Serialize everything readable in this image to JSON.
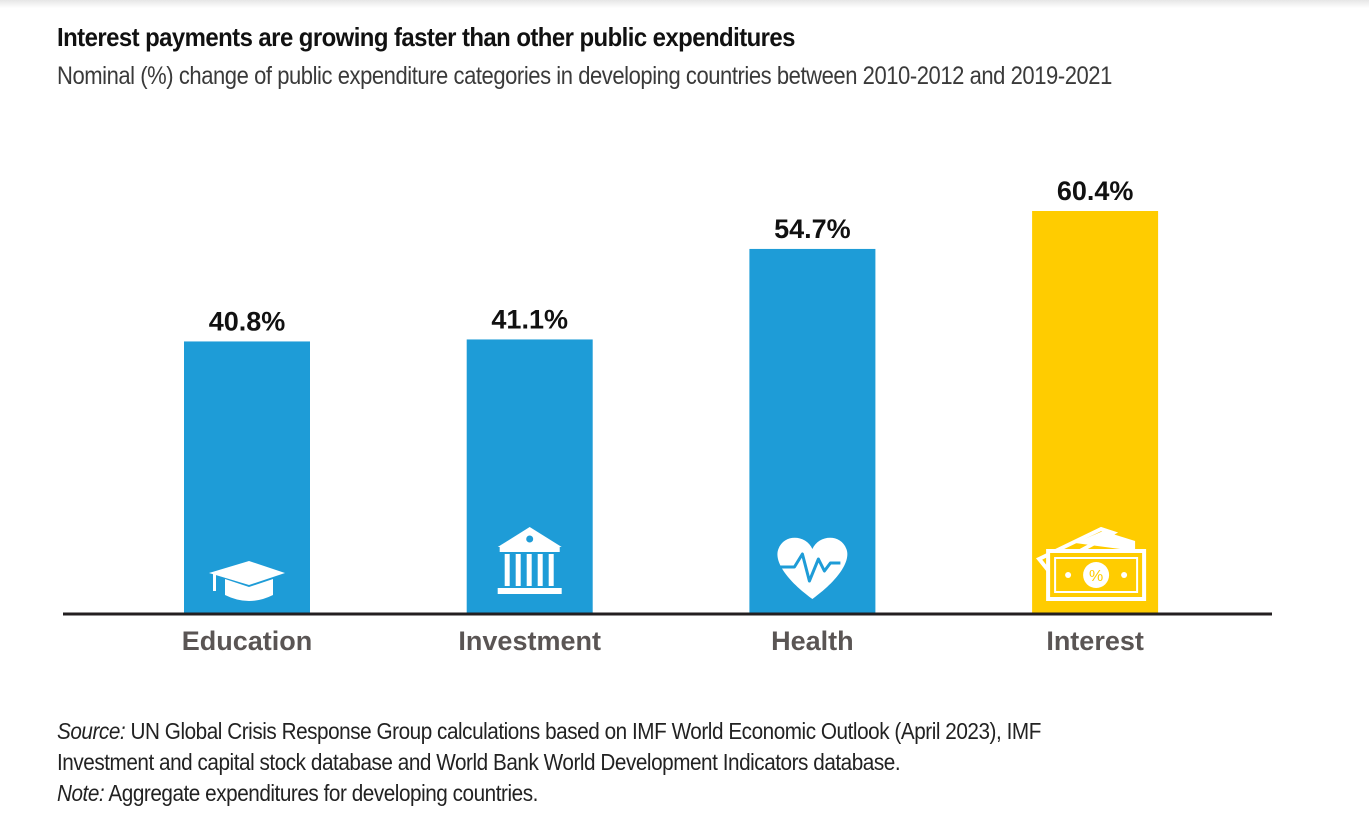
{
  "header": {
    "title": "Interest payments are growing faster than other public expenditures",
    "subtitle": "Nominal (%) change of public expenditure categories in developing countries between 2010-2012 and 2019-2021"
  },
  "chart_data": {
    "type": "bar",
    "title": "Interest payments are growing faster than other public expenditures",
    "subtitle": "Nominal (%) change of public expenditure categories in developing countries between 2010-2012 and 2019-2021",
    "xlabel": "",
    "ylabel": "",
    "categories": [
      "Education",
      "Investment",
      "Health",
      "Interest"
    ],
    "values": [
      40.8,
      41.1,
      54.7,
      60.4
    ],
    "value_labels": [
      "40.8%",
      "41.1%",
      "54.7%",
      "60.4%"
    ],
    "icons": [
      "graduation-cap-icon",
      "bank-building-icon",
      "heart-pulse-icon",
      "money-percent-icon"
    ],
    "colors": [
      "#1e9cd7",
      "#1e9cd7",
      "#1e9cd7",
      "#ffcc00"
    ],
    "ylim": [
      0,
      60.4
    ],
    "grid": false,
    "legend": "none"
  },
  "footer": {
    "source_label": "Source:",
    "source_text": " UN Global Crisis Response Group calculations based on IMF World Economic Outlook (April 2023), IMF",
    "source_text_2": "Investment and capital stock database and World Bank World Development Indicators database.",
    "note_label": "Note:",
    "note_text": " Aggregate expenditures for developing countries."
  },
  "colors": {
    "bar_blue": "#1e9cd7",
    "bar_highlight": "#ffcc00",
    "axis": "#231f20",
    "category_text": "#5a5554"
  }
}
